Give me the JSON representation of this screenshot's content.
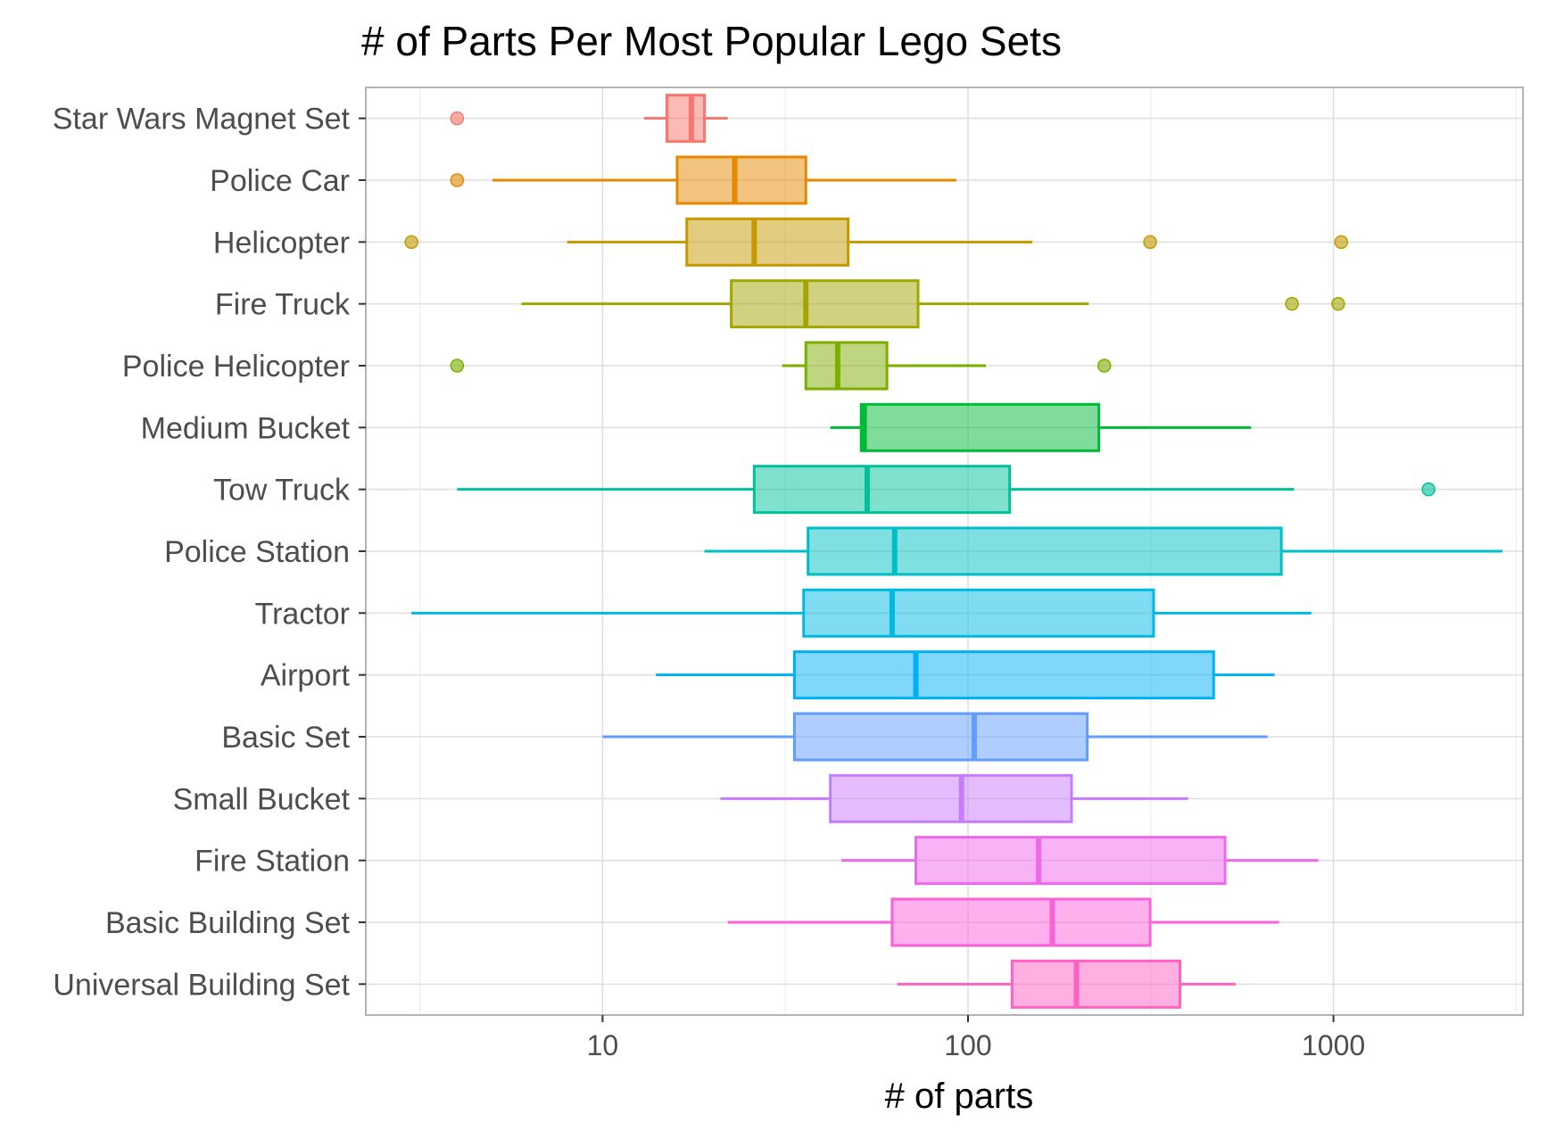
{
  "chart_data": {
    "type": "boxplot",
    "title": "# of Parts Per Most Popular Lego Sets",
    "xlabel": "# of parts",
    "ylabel": "",
    "x_scale": "log10",
    "xlim": [
      2.25,
      3300
    ],
    "x_ticks": [
      10,
      100,
      1000
    ],
    "x_tick_labels": [
      "10",
      "100",
      "1000"
    ],
    "grid": true,
    "legend": "none",
    "series": [
      {
        "label": "Universal Building Set",
        "color": "#FF61C3",
        "whisker_low": 64,
        "q1": 132,
        "median": 198,
        "q3": 380,
        "whisker_high": 540,
        "outliers": []
      },
      {
        "label": "Basic Building Set",
        "color": "#FB61D7",
        "whisker_low": 22,
        "q1": 62,
        "median": 170,
        "q3": 315,
        "whisker_high": 710,
        "outliers": []
      },
      {
        "label": "Fire Station",
        "color": "#EF67EB",
        "whisker_low": 45,
        "q1": 72,
        "median": 156,
        "q3": 505,
        "whisker_high": 910,
        "outliers": []
      },
      {
        "label": "Small Bucket",
        "color": "#C77CFF",
        "whisker_low": 21,
        "q1": 42,
        "median": 96,
        "q3": 192,
        "whisker_high": 400,
        "outliers": []
      },
      {
        "label": "Basic Set",
        "color": "#619CFF",
        "whisker_low": 10,
        "q1": 33.5,
        "median": 104,
        "q3": 212,
        "whisker_high": 660,
        "outliers": []
      },
      {
        "label": "Airport",
        "color": "#00B0F6",
        "whisker_low": 14,
        "q1": 33.5,
        "median": 72,
        "q3": 470,
        "whisker_high": 690,
        "outliers": []
      },
      {
        "label": "Tractor",
        "color": "#00B9E3",
        "whisker_low": 3,
        "q1": 35.5,
        "median": 62,
        "q3": 322,
        "whisker_high": 870,
        "outliers": []
      },
      {
        "label": "Police Station",
        "color": "#00BFC4",
        "whisker_low": 19,
        "q1": 36.5,
        "median": 63,
        "q3": 720,
        "whisker_high": 2900,
        "outliers": []
      },
      {
        "label": "Tow Truck",
        "color": "#00C19A",
        "whisker_low": 4,
        "q1": 26,
        "median": 53,
        "q3": 130,
        "whisker_high": 780,
        "outliers": [
          1820
        ]
      },
      {
        "label": "Medium Bucket",
        "color": "#00BA38",
        "whisker_low": 42,
        "q1": 51,
        "median": 52,
        "q3": 228,
        "whisker_high": 595,
        "outliers": []
      },
      {
        "label": "Police Helicopter",
        "color": "#7CAE00",
        "whisker_low": 31,
        "q1": 36,
        "median": 44,
        "q3": 60,
        "whisker_high": 112,
        "outliers": [
          4,
          236
        ]
      },
      {
        "label": "Fire Truck",
        "color": "#A3A500",
        "whisker_low": 6,
        "q1": 22.5,
        "median": 36,
        "q3": 73,
        "whisker_high": 214,
        "outliers": [
          770,
          1030
        ]
      },
      {
        "label": "Helicopter",
        "color": "#C49A00",
        "whisker_low": 8,
        "q1": 17,
        "median": 26,
        "q3": 47,
        "whisker_high": 150,
        "outliers": [
          3,
          315,
          1050
        ]
      },
      {
        "label": "Police Car",
        "color": "#E58700",
        "whisker_low": 5,
        "q1": 16,
        "median": 23,
        "q3": 36,
        "whisker_high": 93,
        "outliers": [
          4
        ]
      },
      {
        "label": "Star Wars Magnet Set",
        "color": "#F8766D",
        "whisker_low": 13,
        "q1": 15,
        "median": 17.5,
        "q3": 19,
        "whisker_high": 22,
        "outliers": [
          4
        ]
      }
    ]
  }
}
